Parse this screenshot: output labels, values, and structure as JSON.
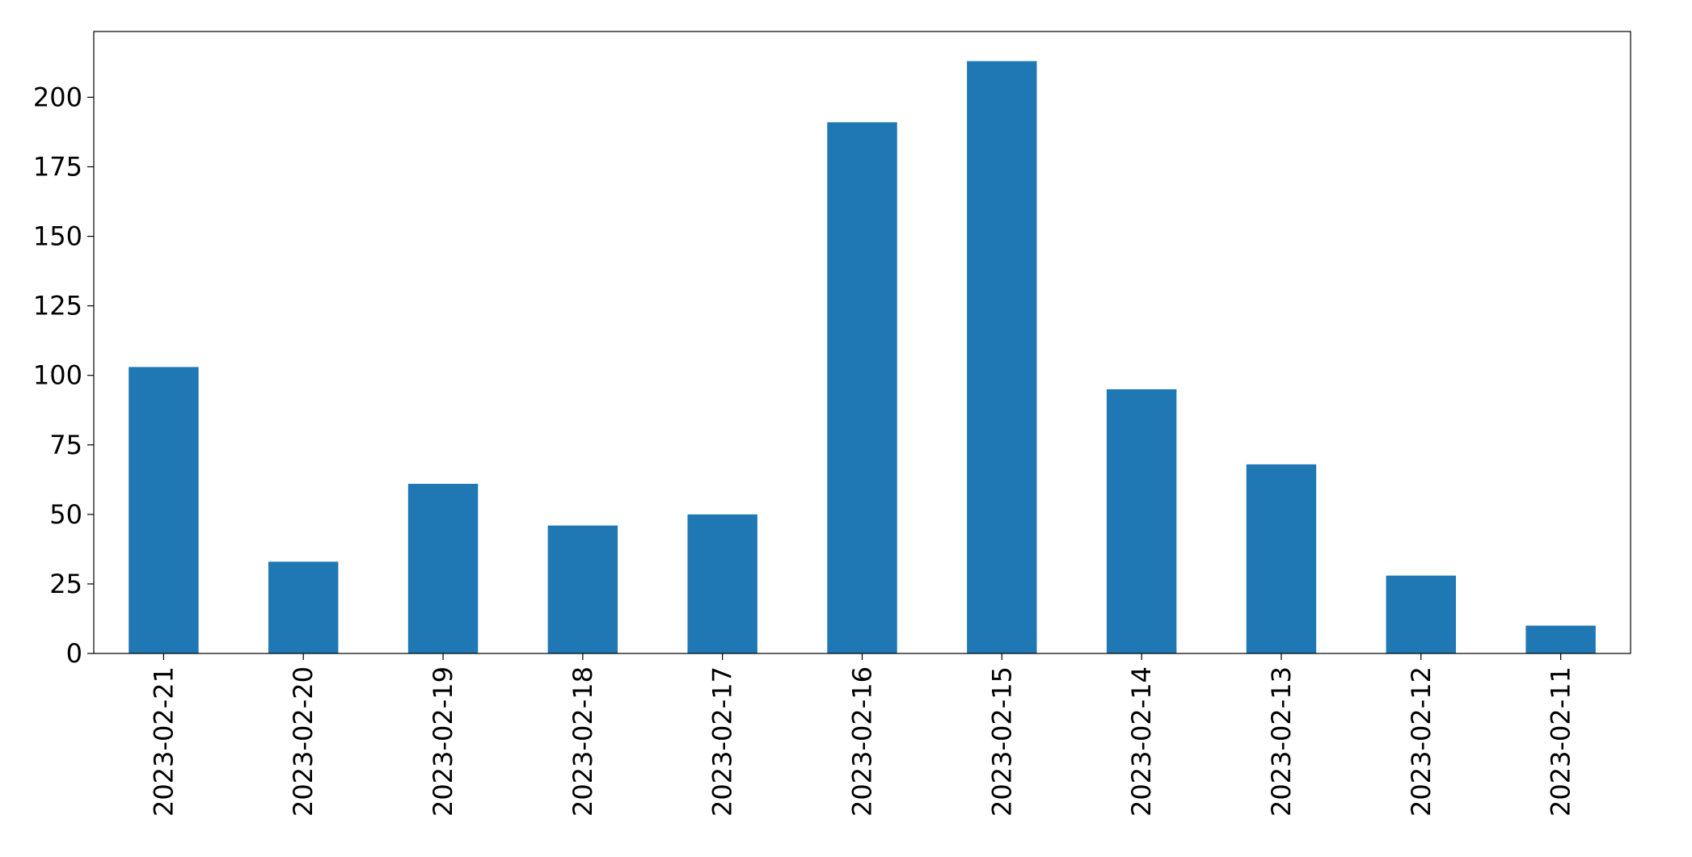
{
  "chart_data": {
    "type": "bar",
    "categories": [
      "2023-02-21",
      "2023-02-20",
      "2023-02-19",
      "2023-02-18",
      "2023-02-17",
      "2023-02-16",
      "2023-02-15",
      "2023-02-14",
      "2023-02-13",
      "2023-02-12",
      "2023-02-11"
    ],
    "values": [
      103,
      33,
      61,
      46,
      50,
      191,
      213,
      95,
      68,
      28,
      10
    ],
    "color": "#1f77b4",
    "ylim": [
      0,
      223.65
    ],
    "yticks": [
      0,
      25,
      50,
      75,
      100,
      125,
      150,
      175,
      200
    ],
    "grid": false
  }
}
